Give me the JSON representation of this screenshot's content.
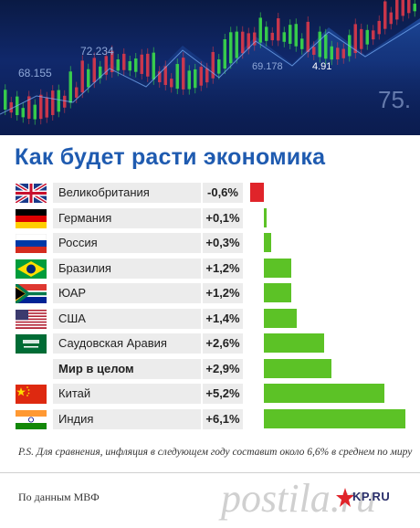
{
  "banner": {
    "labels": [
      "68.155",
      "72.234",
      "69.178",
      "4.91",
      "75."
    ]
  },
  "chart_data": {
    "type": "bar",
    "title": "Как будет расти экономика",
    "categories": [
      "Великобритания",
      "Германия",
      "Россия",
      "Бразилия",
      "ЮАР",
      "США",
      "Саудовская Аравия",
      "Мир в целом",
      "Китай",
      "Индия"
    ],
    "values": [
      -0.6,
      0.1,
      0.3,
      1.2,
      1.2,
      1.4,
      2.6,
      2.9,
      5.2,
      6.1
    ],
    "value_labels": [
      "-0,6%",
      "+0,1%",
      "+0,3%",
      "+1,2%",
      "+1,2%",
      "+1,4%",
      "+2,6%",
      "+2,9%",
      "+5,2%",
      "+6,1%"
    ],
    "flags": [
      "uk-flag",
      "germany-flag",
      "russia-flag",
      "brazil-flag",
      "south-africa-flag",
      "usa-flag",
      "saudi-flag",
      "",
      "china-flag",
      "india-flag"
    ],
    "bold_categories": [
      "Мир в целом"
    ],
    "colors": {
      "positive": "#5cc226",
      "negative": "#e0242a",
      "title": "#1f5bb0"
    },
    "orientation": "horizontal",
    "xlim": [
      -0.6,
      6.1
    ]
  },
  "footer": {
    "note": "P.S. Для сравнения, инфляция в следующем году составит около 6,6% в среднем по миру",
    "source": "По данным МВФ",
    "watermark": "postila.ru",
    "logo": "KP.RU"
  }
}
